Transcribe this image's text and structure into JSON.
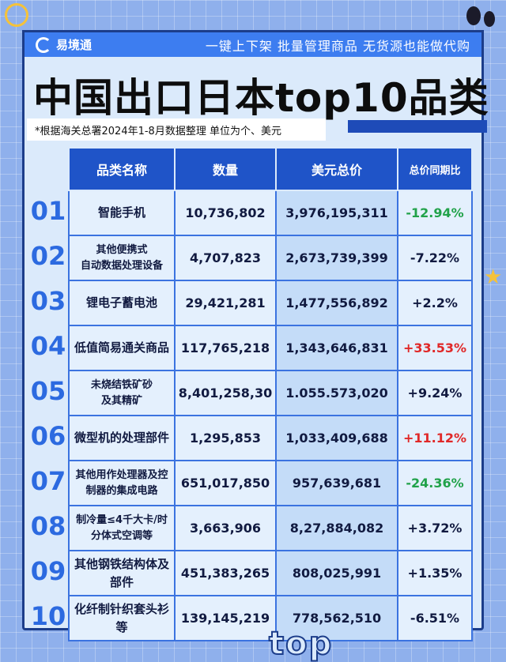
{
  "header": {
    "brand": "易境通",
    "slogan": "一键上下架 批量管理商品 无货源也能做代购"
  },
  "title": "中国出口日本top10品类",
  "note": "*根据海关总署2024年1-8月数据整理 单位为个、美元",
  "table": {
    "columns": [
      "品类名称",
      "数量",
      "美元总价",
      "总价同期比"
    ],
    "rows": [
      {
        "rank": "01",
        "name_line1": "智能手机",
        "name_line2": "",
        "qty": "10,736,802",
        "usd": "3,976,195,311",
        "yoy": "-12.94%",
        "trend": "neg"
      },
      {
        "rank": "02",
        "name_line1": "其他便携式",
        "name_line2": "自动数据处理设备",
        "qty": "4,707,823",
        "usd": "2,673,739,399",
        "yoy": "-7.22%",
        "trend": "plain"
      },
      {
        "rank": "03",
        "name_line1": "锂电子蓄电池",
        "name_line2": "",
        "qty": "29,421,281",
        "usd": "1,477,556,892",
        "yoy": "+2.2%",
        "trend": "plain"
      },
      {
        "rank": "04",
        "name_line1": "低值简易通关商品",
        "name_line2": "",
        "qty": "117,765,218",
        "usd": "1,343,646,831",
        "yoy": "+33.53%",
        "trend": "pos"
      },
      {
        "rank": "05",
        "name_line1": "未烧结铁矿砂",
        "name_line2": "及其精矿",
        "qty": "8,401,258,30",
        "usd": "1.055.573,020",
        "yoy": "+9.24%",
        "trend": "plain"
      },
      {
        "rank": "06",
        "name_line1": "微型机的处理部件",
        "name_line2": "",
        "qty": "1,295,853",
        "usd": "1,033,409,688",
        "yoy": "+11.12%",
        "trend": "pos"
      },
      {
        "rank": "07",
        "name_line1": "其他用作处理器及控",
        "name_line2": "制器的集成电路",
        "qty": "651,017,850",
        "usd": "957,639,681",
        "yoy": "-24.36%",
        "trend": "neg"
      },
      {
        "rank": "08",
        "name_line1": "制冷量≤4千大卡/时",
        "name_line2": "分体式空调等",
        "qty": "3,663,906",
        "usd": "8,27,884,082",
        "yoy": "+3.72%",
        "trend": "plain"
      },
      {
        "rank": "09",
        "name_line1": "其他钢铁结构体及部件",
        "name_line2": "",
        "qty": "451,383,265",
        "usd": "808,025,991",
        "yoy": "+1.35%",
        "trend": "plain"
      },
      {
        "rank": "10",
        "name_line1": "化纤制针织套头衫等",
        "name_line2": "",
        "qty": "139,145,219",
        "usd": "778,562,510",
        "yoy": "-6.51%",
        "trend": "plain"
      }
    ]
  },
  "footer_word": "top"
}
